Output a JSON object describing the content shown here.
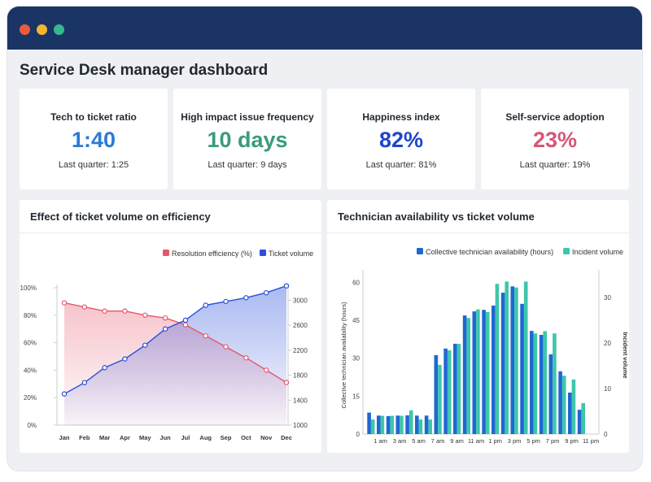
{
  "page": {
    "title": "Service Desk manager dashboard"
  },
  "kpis": [
    {
      "title": "Tech to ticket ratio",
      "value": "1:40",
      "sub": "Last quarter: 1:25",
      "color": "#2b7bd6"
    },
    {
      "title": "High impact issue frequency",
      "value": "10 days",
      "sub": "Last quarter: 9 days",
      "color": "#3a9a7e"
    },
    {
      "title": "Happiness index",
      "value": "82%",
      "sub": "Last quarter: 81%",
      "color": "#1f45c8"
    },
    {
      "title": "Self-service adoption",
      "value": "23%",
      "sub": "Last quarter: 19%",
      "color": "#d65777"
    }
  ],
  "colors": {
    "titlebar": "#1a3466",
    "efficiency": "#e5576b",
    "volume": "#2a4fdc",
    "availability": "#1f67d2",
    "incidents": "#3ec6ab"
  },
  "chart_data": [
    {
      "type": "area",
      "title": "Effect of ticket volume on efficiency",
      "legend_position": "top-right",
      "categories": [
        "Jan",
        "Feb",
        "Mar",
        "Apr",
        "May",
        "Jun",
        "Jul",
        "Aug",
        "Sep",
        "Oct",
        "Nov",
        "Dec"
      ],
      "y_ticks_left": [
        "0%",
        "20%",
        "40%",
        "60%",
        "80%",
        "100%"
      ],
      "y_ticks_right": [
        "1000",
        "1400",
        "1800",
        "2200",
        "2600",
        "3000"
      ],
      "ylim_left": [
        0,
        100
      ],
      "ylim_right": [
        1000,
        3200
      ],
      "series": [
        {
          "name": "Resolution efficiency (%)",
          "axis": "left",
          "values": [
            89,
            86,
            83,
            83,
            80,
            78,
            73,
            65,
            57,
            49,
            40,
            31
          ]
        },
        {
          "name": "Ticket volume",
          "axis": "right",
          "values": [
            1500,
            1680,
            1920,
            2060,
            2280,
            2540,
            2680,
            2920,
            2980,
            3040,
            3120,
            3230
          ]
        }
      ]
    },
    {
      "type": "bar",
      "title": "Technician availability vs ticket volume",
      "legend_position": "top-right",
      "ylabel_left": "Collective technician availability (hours)",
      "ylabel_right": "Incident volume",
      "x_tick_labels": [
        "1 am",
        "3 am",
        "5 am",
        "7 am",
        "9 am",
        "11 am",
        "1 pm",
        "3 pm",
        "5 pm",
        "7 pm",
        "9 pm",
        "11 pm"
      ],
      "y_ticks_left": [
        "0",
        "15",
        "30",
        "45",
        "60"
      ],
      "y_ticks_right": [
        "0",
        "10",
        "20",
        "30"
      ],
      "ylim_left": [
        0,
        63
      ],
      "ylim_right": [
        0,
        35
      ],
      "categories": [
        "12 am",
        "1 am",
        "2 am",
        "3 am",
        "4 am",
        "5 am",
        "6 am",
        "7 am",
        "8 am",
        "9 am",
        "10 am",
        "11 am",
        "12 pm",
        "1 pm",
        "2 pm",
        "3 pm",
        "4 pm",
        "5 pm",
        "6 pm",
        "7 pm",
        "8 pm",
        "9 pm",
        "10 pm",
        "11 pm"
      ],
      "series": [
        {
          "name": "Collective technician availability (hours)",
          "axis": "left",
          "values": [
            8.5,
            7.3,
            7.1,
            7.3,
            7.4,
            7.3,
            7.3,
            31.2,
            33.8,
            35.7,
            46.9,
            48.5,
            49.1,
            50.8,
            55.9,
            58.4,
            51.5,
            40.8,
            39.2,
            31.5,
            24.8,
            16.4,
            9.6,
            0
          ]
        },
        {
          "name": "Incident volume",
          "axis": "right",
          "values": [
            3.2,
            4.0,
            4.0,
            4.0,
            5.2,
            3.2,
            3.2,
            15.2,
            18.4,
            19.8,
            25.5,
            27.4,
            26.8,
            33.0,
            33.5,
            32.2,
            33.5,
            22.1,
            22.6,
            22.1,
            12.8,
            12.0,
            6.8,
            0
          ]
        }
      ]
    }
  ]
}
